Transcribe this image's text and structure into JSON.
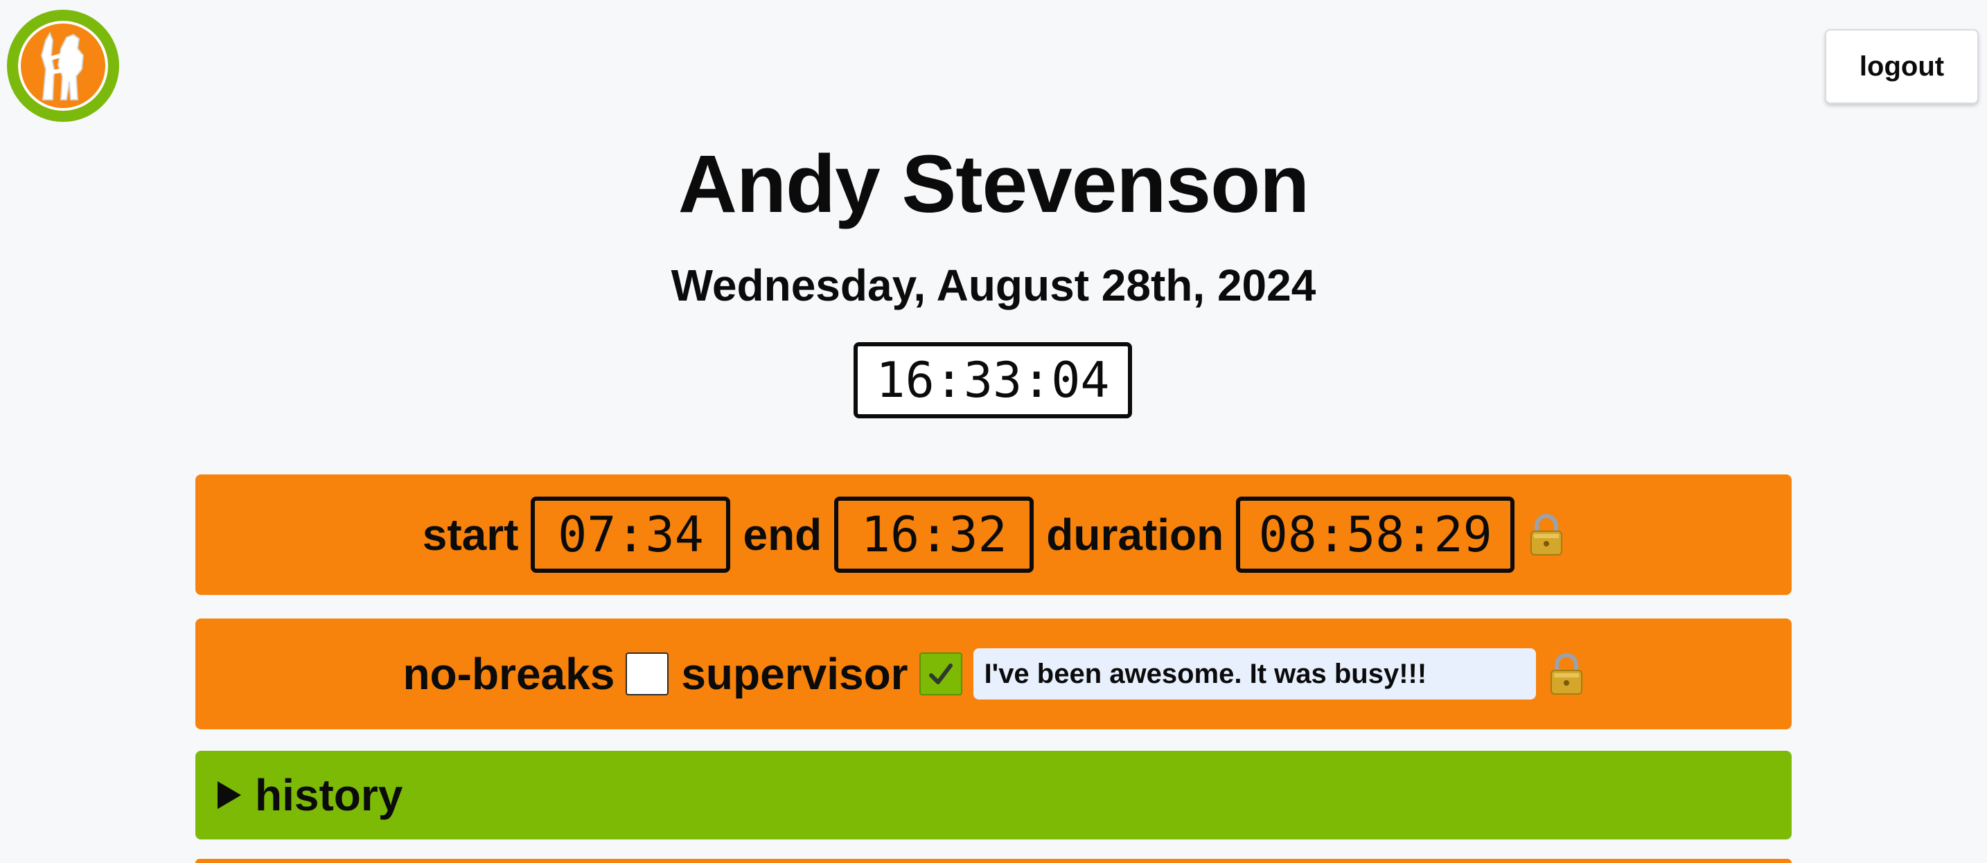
{
  "header": {
    "logout_label": "logout"
  },
  "user": {
    "name": "Andy Stevenson",
    "date": "Wednesday, August 28th, 2024",
    "current_time": "16:33:04"
  },
  "shift": {
    "start_label": "start",
    "start_value": "07:34",
    "end_label": "end",
    "end_value": "16:32",
    "duration_label": "duration",
    "duration_value": "08:58:29"
  },
  "flags": {
    "no_breaks_label": "no-breaks",
    "no_breaks_checked": false,
    "supervisor_label": "supervisor",
    "supervisor_checked": true,
    "note_value": "I've been awesome. It was busy!!!"
  },
  "history": {
    "label": "history"
  },
  "colors": {
    "accent_orange": "#f7820c",
    "accent_green": "#7cba06",
    "background": "#f7f8fa",
    "note_field": "#e8f0fe"
  },
  "icons": {
    "logo": "bears-logo-icon",
    "lock": "lock-icon",
    "check": "checkmark-icon",
    "disclosure": "triangle-right-icon"
  }
}
